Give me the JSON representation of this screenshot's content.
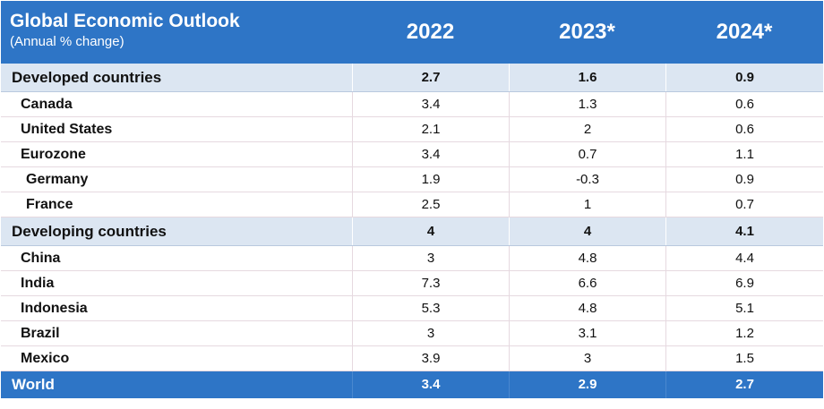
{
  "header": {
    "title": "Global Economic Outlook",
    "subtitle": "(Annual % change)",
    "years": [
      "2022",
      "2023*",
      "2024*"
    ]
  },
  "developed": {
    "label": "Developed countries",
    "values": [
      "2.7",
      "1.6",
      "0.9"
    ],
    "rows": [
      {
        "name": "Canada",
        "values": [
          "3.4",
          "1.3",
          "0.6"
        ]
      },
      {
        "name": "United States",
        "values": [
          "2.1",
          "2",
          "0.6"
        ]
      },
      {
        "name": "Eurozone",
        "values": [
          "3.4",
          "0.7",
          "1.1"
        ]
      },
      {
        "name": "Germany",
        "values": [
          "1.9",
          "-0.3",
          "0.9"
        ]
      },
      {
        "name": "France",
        "values": [
          "2.5",
          "1",
          "0.7"
        ]
      }
    ]
  },
  "developing": {
    "label": "Developing countries",
    "values": [
      "4",
      "4",
      "4.1"
    ],
    "rows": [
      {
        "name": "China",
        "values": [
          "3",
          "4.8",
          "4.4"
        ]
      },
      {
        "name": "India",
        "values": [
          "7.3",
          "6.6",
          "6.9"
        ]
      },
      {
        "name": "Indonesia",
        "values": [
          "5.3",
          "4.8",
          "5.1"
        ]
      },
      {
        "name": "Brazil",
        "values": [
          "3",
          "3.1",
          "1.2"
        ]
      },
      {
        "name": "Mexico",
        "values": [
          "3.9",
          "3",
          "1.5"
        ]
      }
    ]
  },
  "world": {
    "label": "World",
    "values": [
      "3.4",
      "2.9",
      "2.7"
    ]
  },
  "colors": {
    "header_bg": "#2e75c6",
    "group_bg": "#dce6f2",
    "row_border": "#e6d9e0"
  }
}
